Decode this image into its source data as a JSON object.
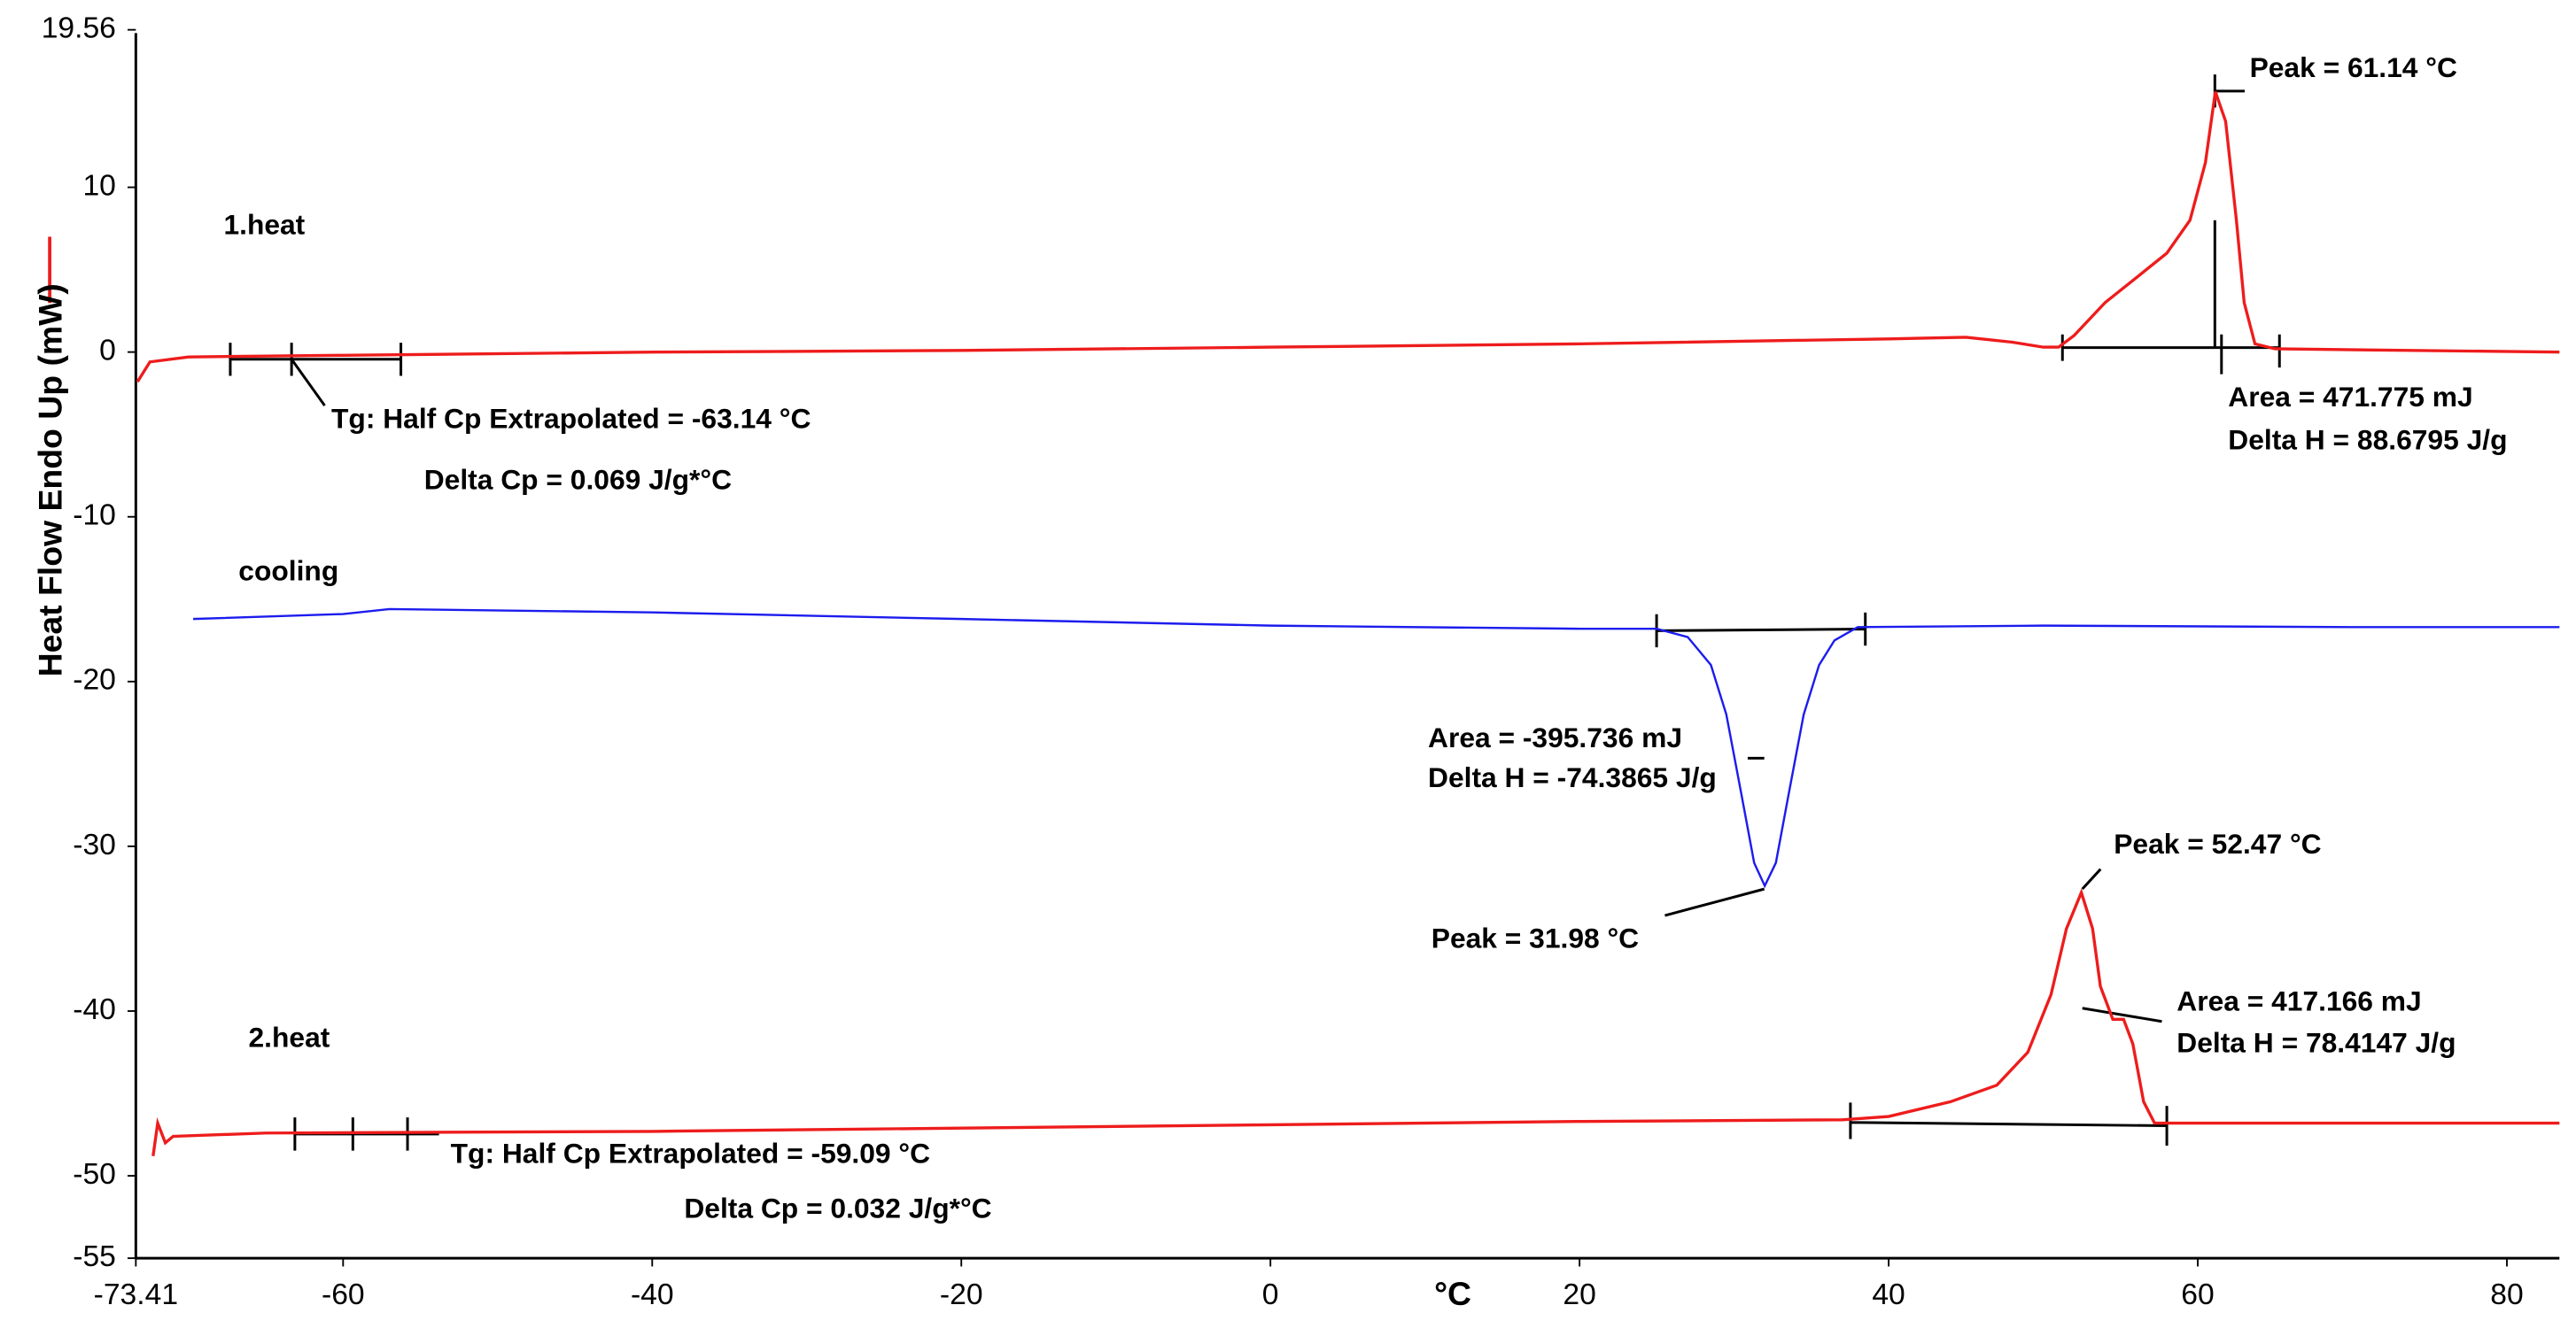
{
  "chart_data": {
    "type": "line",
    "y_label": "Heat Flow Endo Up (mW)",
    "x_label": "°C",
    "xlim": [
      -73.41,
      83.4
    ],
    "xticks": [
      -73.41,
      -60,
      -40,
      -20,
      0,
      20,
      40,
      60,
      80
    ],
    "ylim": [
      -55,
      19.56
    ],
    "yticks": [
      19.56,
      10,
      0,
      -10,
      -20,
      -30,
      -40,
      -50,
      -55
    ],
    "series": [
      {
        "name": "1.heat",
        "color": "#ee1c1c",
        "x": [
          -73.3,
          -72.5,
          -70,
          -60,
          -40,
          -20,
          0,
          20,
          40,
          45,
          48,
          50,
          51,
          52,
          54,
          56,
          58,
          59.5,
          60.5,
          61.14,
          61.8,
          62.5,
          63,
          63.7,
          65,
          83.4
        ],
        "values": [
          -1.8,
          -0.6,
          -0.3,
          -0.2,
          0,
          0.1,
          0.3,
          0.5,
          0.8,
          0.9,
          0.6,
          0.3,
          0.3,
          1,
          3,
          4.5,
          6,
          8,
          11.5,
          15.8,
          14,
          8,
          3,
          0.5,
          0.2,
          0
        ]
      },
      {
        "name": "cooling",
        "color": "#1c1cee",
        "x": [
          -69.7,
          -60,
          -57,
          -40,
          -20,
          0,
          20,
          25,
          27,
          28.5,
          29.5,
          30.5,
          31.3,
          31.98,
          32.7,
          33.5,
          34.5,
          35.5,
          36.5,
          38,
          50,
          70,
          83.4
        ],
        "values": [
          -16.2,
          -15.9,
          -15.6,
          -15.8,
          -16.2,
          -16.6,
          -16.8,
          -16.8,
          -17.3,
          -19,
          -22,
          -27,
          -31,
          -32.4,
          -31,
          -27,
          -22,
          -19,
          -17.5,
          -16.7,
          -16.6,
          -16.7,
          -16.7
        ]
      },
      {
        "name": "2.heat",
        "color": "#ee1c1c",
        "x": [
          -72.3,
          -72,
          -71.5,
          -71,
          -65,
          -40,
          -20,
          0,
          20,
          37,
          40,
          44,
          47,
          49,
          50.5,
          51.5,
          52.47,
          53.2,
          53.7,
          54.5,
          55.2,
          55.8,
          56.5,
          57.2,
          60,
          83.4
        ],
        "values": [
          -48.8,
          -46.8,
          -48,
          -47.6,
          -47.4,
          -47.3,
          -47.1,
          -46.9,
          -46.7,
          -46.6,
          -46.4,
          -45.5,
          -44.5,
          -42.5,
          -39,
          -35,
          -32.8,
          -35,
          -38.5,
          -40.5,
          -40.5,
          -42,
          -45.5,
          -46.8,
          -46.8,
          -46.8
        ]
      }
    ],
    "annotations": [
      "Peak = 61.14 °C",
      "Area = 471.775 mJ",
      "Delta H = 88.6795 J/g",
      "Tg: Half Cp Extrapolated = -63.14 °C",
      "Delta Cp = 0.069 J/g*°C",
      "Area = -395.736 mJ",
      "Delta H = -74.3865 J/g",
      "Peak = 31.98 °C",
      "Peak = 52.47 °C",
      "Area = 417.166 mJ",
      "Delta H = 78.4147 J/g",
      "Tg: Half Cp Extrapolated = -59.09 °C",
      "Delta Cp = 0.032 J/g*°C"
    ]
  }
}
